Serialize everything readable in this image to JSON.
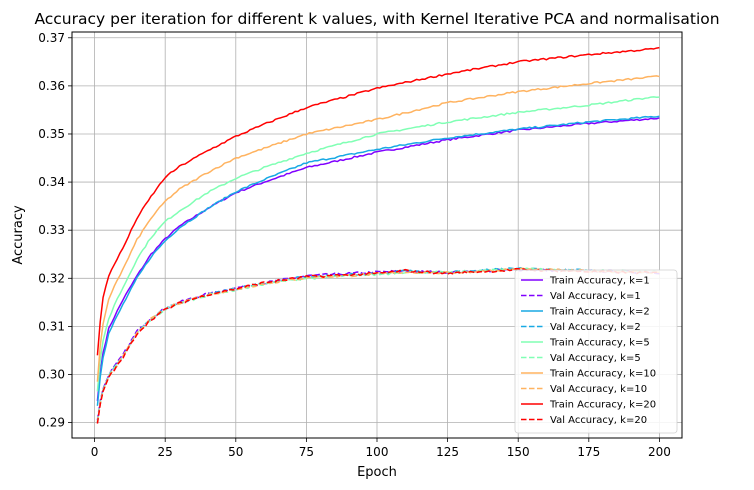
{
  "chart_data": {
    "type": "line",
    "title": "Accuracy per iteration for different k values, with Kernel Iterative PCA and normalisation",
    "xlabel": "Epoch",
    "ylabel": "Accuracy",
    "xlim": [
      -8,
      208
    ],
    "ylim": [
      0.2868,
      0.3712
    ],
    "xticks": [
      0,
      25,
      50,
      75,
      100,
      125,
      150,
      175,
      200
    ],
    "yticks": [
      0.29,
      0.3,
      0.31,
      0.32,
      0.33,
      0.34,
      0.35,
      0.36,
      0.37
    ],
    "ytick_labels": [
      "0.29",
      "0.30",
      "0.31",
      "0.32",
      "0.33",
      "0.34",
      "0.35",
      "0.36",
      "0.37"
    ],
    "grid": true,
    "legend_position": "lower-right",
    "series": [
      {
        "name": "Train Accuracy, k=1",
        "color": "#8000ff",
        "dash": "solid",
        "x": [
          1,
          2,
          3,
          5,
          7,
          10,
          15,
          20,
          25,
          30,
          40,
          50,
          60,
          75,
          100,
          125,
          150,
          175,
          200
        ],
        "y": [
          0.2945,
          0.3005,
          0.3045,
          0.3095,
          0.312,
          0.3155,
          0.3205,
          0.325,
          0.3282,
          0.3308,
          0.3345,
          0.3378,
          0.34,
          0.343,
          0.3462,
          0.3488,
          0.3508,
          0.3522,
          0.3533
        ]
      },
      {
        "name": "Val Accuracy, k=1",
        "color": "#8000ff",
        "dash": "dashed",
        "x": [
          1,
          2,
          3,
          5,
          10,
          15,
          20,
          25,
          30,
          40,
          50,
          60,
          75,
          100,
          110,
          125,
          150,
          175,
          200
        ],
        "y": [
          0.2905,
          0.2945,
          0.297,
          0.3,
          0.304,
          0.309,
          0.3118,
          0.3137,
          0.315,
          0.3168,
          0.318,
          0.319,
          0.3205,
          0.3213,
          0.3215,
          0.3212,
          0.3218,
          0.3215,
          0.3212
        ]
      },
      {
        "name": "Train Accuracy, k=2",
        "color": "#18a9e4",
        "dash": "solid",
        "x": [
          1,
          2,
          3,
          5,
          7,
          10,
          15,
          20,
          25,
          30,
          40,
          50,
          60,
          75,
          100,
          125,
          150,
          175,
          200
        ],
        "y": [
          0.2935,
          0.2995,
          0.3035,
          0.3085,
          0.311,
          0.3145,
          0.32,
          0.3245,
          0.3278,
          0.3305,
          0.3345,
          0.338,
          0.3405,
          0.344,
          0.3468,
          0.3492,
          0.351,
          0.3525,
          0.3537
        ]
      },
      {
        "name": "Val Accuracy, k=2",
        "color": "#18a9e4",
        "dash": "dashed",
        "x": [
          1,
          2,
          3,
          5,
          10,
          15,
          20,
          25,
          30,
          40,
          50,
          60,
          75,
          100,
          110,
          125,
          150,
          175,
          200
        ],
        "y": [
          0.29,
          0.294,
          0.2968,
          0.2998,
          0.3038,
          0.3088,
          0.3116,
          0.3136,
          0.3149,
          0.3167,
          0.3178,
          0.319,
          0.3203,
          0.321,
          0.3215,
          0.3213,
          0.322,
          0.3216,
          0.3213
        ]
      },
      {
        "name": "Train Accuracy, k=5",
        "color": "#80ffb4",
        "dash": "solid",
        "x": [
          1,
          2,
          3,
          5,
          7,
          10,
          15,
          20,
          25,
          30,
          40,
          50,
          60,
          75,
          100,
          125,
          150,
          175,
          200
        ],
        "y": [
          0.2965,
          0.303,
          0.307,
          0.3115,
          0.3145,
          0.318,
          0.324,
          0.3285,
          0.3318,
          0.334,
          0.3378,
          0.3408,
          0.343,
          0.346,
          0.35,
          0.3525,
          0.3545,
          0.356,
          0.3578
        ]
      },
      {
        "name": "Val Accuracy, k=5",
        "color": "#80ffb4",
        "dash": "dashed",
        "x": [
          1,
          2,
          3,
          5,
          10,
          15,
          20,
          25,
          30,
          40,
          50,
          60,
          75,
          100,
          110,
          125,
          150,
          175,
          200
        ],
        "y": [
          0.2902,
          0.2942,
          0.2968,
          0.2998,
          0.3036,
          0.3086,
          0.3114,
          0.3135,
          0.3148,
          0.3165,
          0.3176,
          0.3188,
          0.32,
          0.3208,
          0.3213,
          0.3212,
          0.322,
          0.3216,
          0.3213
        ]
      },
      {
        "name": "Train Accuracy, k=10",
        "color": "#ffb360",
        "dash": "solid",
        "x": [
          1,
          2,
          3,
          5,
          7,
          10,
          15,
          20,
          25,
          30,
          40,
          50,
          60,
          75,
          100,
          125,
          150,
          175,
          200
        ],
        "y": [
          0.2985,
          0.306,
          0.3105,
          0.3155,
          0.3185,
          0.3218,
          0.328,
          0.3325,
          0.336,
          0.3385,
          0.342,
          0.345,
          0.347,
          0.35,
          0.353,
          0.3565,
          0.3588,
          0.3605,
          0.362
        ]
      },
      {
        "name": "Val Accuracy, k=10",
        "color": "#ffb360",
        "dash": "dashed",
        "x": [
          1,
          2,
          3,
          5,
          10,
          15,
          20,
          25,
          30,
          40,
          50,
          60,
          75,
          100,
          110,
          125,
          150,
          175,
          200
        ],
        "y": [
          0.29,
          0.294,
          0.2966,
          0.2996,
          0.3036,
          0.3086,
          0.3115,
          0.3136,
          0.3149,
          0.3166,
          0.3177,
          0.3189,
          0.3201,
          0.3209,
          0.3213,
          0.3211,
          0.3219,
          0.3215,
          0.3212
        ]
      },
      {
        "name": "Train Accuracy, k=20",
        "color": "#ff0000",
        "dash": "solid",
        "x": [
          1,
          2,
          3,
          5,
          7,
          10,
          15,
          20,
          25,
          30,
          40,
          50,
          60,
          75,
          100,
          125,
          150,
          175,
          200
        ],
        "y": [
          0.304,
          0.311,
          0.316,
          0.3205,
          0.323,
          0.3262,
          0.3325,
          0.337,
          0.341,
          0.3432,
          0.3465,
          0.3495,
          0.352,
          0.3555,
          0.3595,
          0.3625,
          0.365,
          0.3665,
          0.3678
        ]
      },
      {
        "name": "Val Accuracy, k=20",
        "color": "#ff0000",
        "dash": "dashed",
        "x": [
          1,
          2,
          3,
          5,
          10,
          15,
          20,
          25,
          30,
          40,
          50,
          60,
          75,
          100,
          110,
          125,
          150,
          175,
          200
        ],
        "y": [
          0.2898,
          0.2938,
          0.2965,
          0.2995,
          0.3034,
          0.3085,
          0.3114,
          0.3135,
          0.3148,
          0.3166,
          0.3178,
          0.3191,
          0.3203,
          0.321,
          0.3216,
          0.321,
          0.3218,
          0.3214,
          0.3211
        ]
      }
    ]
  }
}
